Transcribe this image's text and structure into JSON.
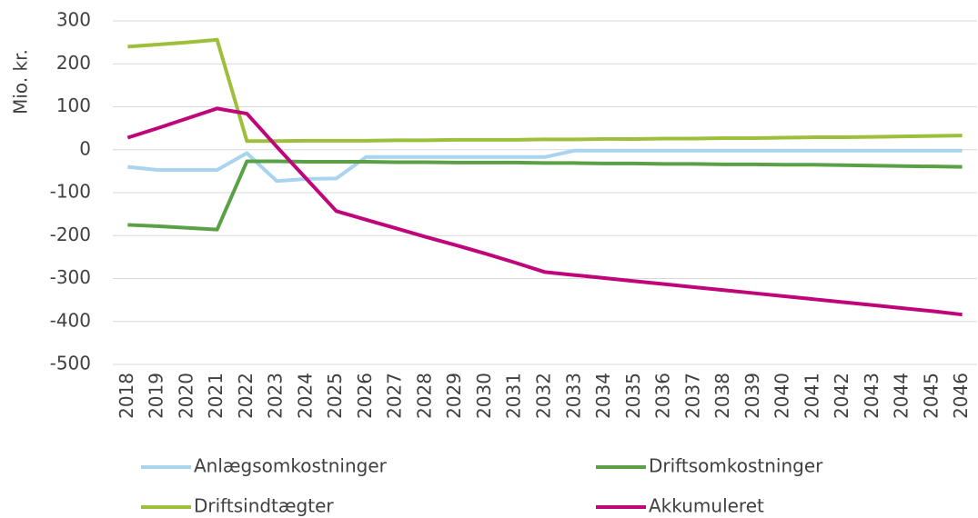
{
  "chart_data": {
    "type": "line",
    "y_axis_label": "Mio. kr.",
    "categories": [
      "2018",
      "2019",
      "2020",
      "2021",
      "2022",
      "2023",
      "2024",
      "2025",
      "2026",
      "2027",
      "2028",
      "2029",
      "2030",
      "2031",
      "2032",
      "2033",
      "2034",
      "2035",
      "2036",
      "2037",
      "2038",
      "2039",
      "2040",
      "2041",
      "2042",
      "2043",
      "2044",
      "2045",
      "2046"
    ],
    "series": [
      {
        "name": "Anlægsomkostninger",
        "color": "#a9d4f0",
        "values": [
          -40,
          -47,
          -47,
          -47,
          -8,
          -73,
          -68,
          -67,
          -17,
          -17,
          -17,
          -17,
          -17,
          -17,
          -17,
          -2,
          -2,
          -2,
          -2,
          -2,
          -2,
          -2,
          -2,
          -2,
          -2,
          -2,
          -2,
          -2,
          -2
        ]
      },
      {
        "name": "Driftsomkostninger",
        "color": "#5aa146",
        "values": [
          -175,
          -178,
          -182,
          -186,
          -27,
          -27,
          -28,
          -28,
          -28,
          -29,
          -29,
          -30,
          -30,
          -30,
          -31,
          -31,
          -32,
          -32,
          -33,
          -33,
          -34,
          -34,
          -35,
          -35,
          -36,
          -37,
          -38,
          -39,
          -40
        ]
      },
      {
        "name": "Driftsindtægter",
        "color": "#9dbf3a",
        "values": [
          240,
          245,
          250,
          256,
          20,
          20,
          21,
          21,
          21,
          22,
          22,
          23,
          23,
          23,
          24,
          24,
          25,
          25,
          26,
          26,
          27,
          27,
          28,
          29,
          29,
          30,
          31,
          32,
          33
        ]
      },
      {
        "name": "Akkumuleret",
        "color": "#c0047a",
        "values": [
          28,
          50,
          73,
          96,
          84,
          7,
          -68,
          -143,
          -163,
          -183,
          -203,
          -222,
          -242,
          -263,
          -285,
          -292,
          -299,
          -306,
          -313,
          -320,
          -327,
          -334,
          -341,
          -348,
          -355,
          -362,
          -369,
          -376,
          -384
        ]
      }
    ],
    "ylim": [
      -500,
      300
    ],
    "yticks": [
      -500,
      -400,
      -300,
      -200,
      -100,
      0,
      100,
      200,
      300
    ],
    "grid": true,
    "legend": "bottom"
  }
}
